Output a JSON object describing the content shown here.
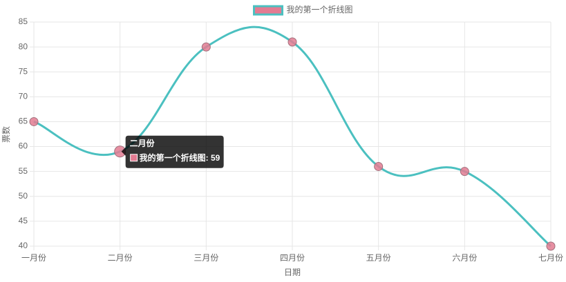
{
  "chart_data": {
    "type": "line",
    "x_label": "日期",
    "y_label": "票数",
    "categories": [
      "一月份",
      "二月份",
      "三月份",
      "四月份",
      "五月份",
      "六月份",
      "七月份"
    ],
    "series": [
      {
        "name": "我的第一个折线图",
        "color": "#4bc0c0",
        "point_color": "#e37b92",
        "values": [
          65,
          59,
          80,
          81,
          56,
          55,
          40
        ]
      }
    ],
    "ylim": [
      40,
      85
    ],
    "yticks": [
      40,
      45,
      50,
      55,
      60,
      65,
      70,
      75,
      80,
      85
    ],
    "grid": true,
    "legend": "top",
    "tooltip": {
      "title": "二月份",
      "label": "我的第一个折线图: 59"
    }
  }
}
